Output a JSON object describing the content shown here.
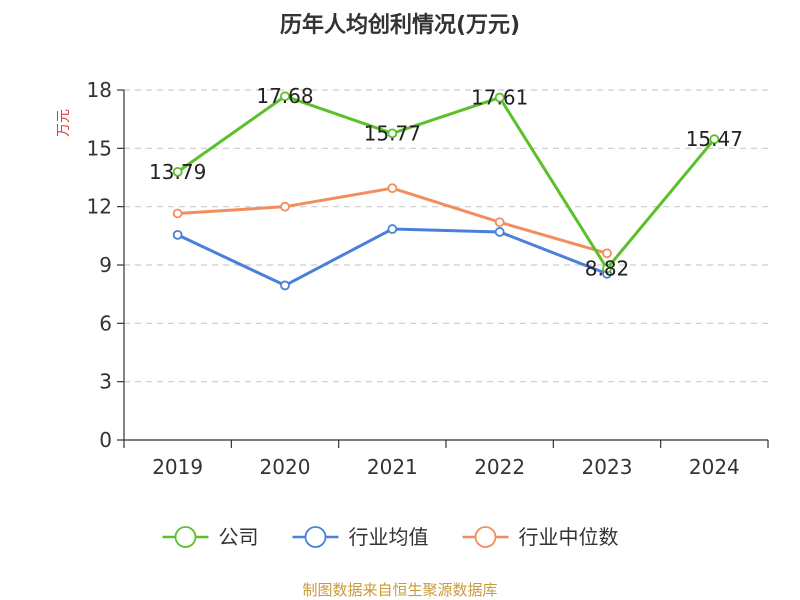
{
  "chart_data": {
    "type": "line",
    "title": "历年人均创利情况(万元)",
    "ylabel": "万元",
    "xlabel": "",
    "categories": [
      "2019",
      "2020",
      "2021",
      "2022",
      "2023",
      "2024"
    ],
    "ylim": [
      0,
      18
    ],
    "yticks": [
      0,
      3,
      6,
      9,
      12,
      15,
      18
    ],
    "grid": true,
    "legend_position": "bottom",
    "series": [
      {
        "name": "公司",
        "color": "#5bc12a",
        "values": [
          13.79,
          17.68,
          15.77,
          17.61,
          8.82,
          15.47
        ],
        "labels": [
          "13.79",
          "17.68",
          "15.77",
          "17.61",
          "8.82",
          "15.47"
        ]
      },
      {
        "name": "行业均值",
        "color": "#4a7fdc",
        "values": [
          10.55,
          7.95,
          10.85,
          10.7,
          8.55,
          null
        ]
      },
      {
        "name": "行业中位数",
        "color": "#f28e5e",
        "values": [
          11.65,
          12.0,
          12.95,
          11.2,
          9.6,
          null
        ]
      }
    ]
  },
  "source_text": "制图数据来自恒生聚源数据库",
  "colors": {
    "ylabel": "#e03c3c",
    "source": "#c89a3c",
    "axis": "#333333",
    "grid": "#cccccc"
  }
}
